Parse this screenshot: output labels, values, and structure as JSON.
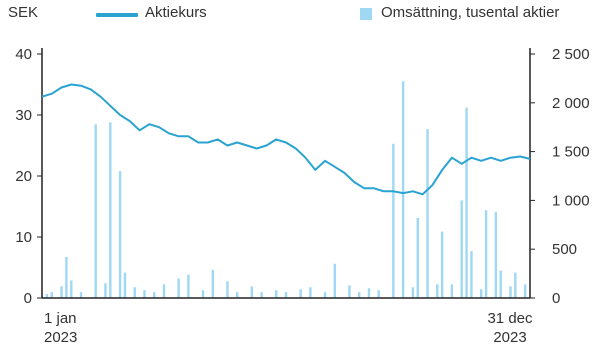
{
  "legend": {
    "left_unit": "SEK",
    "price_label": "Aktiekurs",
    "volume_label": "Omsättning, tusental aktier"
  },
  "colors": {
    "price_line": "#2aa3d1",
    "volume_bars": "#9fd8f2",
    "axis": "#222222"
  },
  "chart_data": {
    "type": "line",
    "left_axis": {
      "min": 0,
      "max": 40,
      "ticks": [
        "0",
        "10",
        "20",
        "30",
        "40"
      ],
      "tick_values": [
        0,
        10,
        20,
        30,
        40
      ]
    },
    "right_axis": {
      "min": 0,
      "max": 2500,
      "ticks": [
        "0",
        "500",
        "1 000",
        "1 500",
        "2 000",
        "2 500"
      ],
      "tick_values": [
        0,
        500,
        1000,
        1500,
        2000,
        2500
      ]
    },
    "x_labels": [
      {
        "line1": "1 jan",
        "line2": "2023"
      },
      {
        "line1": "31 dec",
        "line2": "2023"
      }
    ],
    "grid": false,
    "legend_position": "top",
    "series": [
      {
        "name": "Aktiekurs",
        "axis": "left",
        "x": [
          0.0,
          0.02,
          0.04,
          0.06,
          0.08,
          0.1,
          0.12,
          0.14,
          0.16,
          0.18,
          0.2,
          0.22,
          0.24,
          0.26,
          0.28,
          0.3,
          0.32,
          0.34,
          0.36,
          0.38,
          0.4,
          0.42,
          0.44,
          0.46,
          0.48,
          0.5,
          0.52,
          0.54,
          0.56,
          0.58,
          0.6,
          0.62,
          0.64,
          0.66,
          0.68,
          0.7,
          0.72,
          0.74,
          0.76,
          0.78,
          0.8,
          0.82,
          0.84,
          0.86,
          0.88,
          0.9,
          0.92,
          0.94,
          0.96,
          0.98,
          1.0
        ],
        "values": [
          33.0,
          33.5,
          34.5,
          35.0,
          34.8,
          34.2,
          33.0,
          31.5,
          30.0,
          29.0,
          27.5,
          28.5,
          28.0,
          27.0,
          26.5,
          26.5,
          25.5,
          25.5,
          26.0,
          25.0,
          25.5,
          25.0,
          24.5,
          25.0,
          26.0,
          25.5,
          24.5,
          23.0,
          21.0,
          22.5,
          21.5,
          20.5,
          19.0,
          18.0,
          18.0,
          17.5,
          17.5,
          17.2,
          17.5,
          17.0,
          18.5,
          21.0,
          23.0,
          22.0,
          23.0,
          22.5,
          23.0,
          22.5,
          23.0,
          23.2,
          22.8
        ]
      },
      {
        "name": "Omsättning, tusental aktier",
        "axis": "right",
        "type": "bar",
        "x": [
          0.01,
          0.02,
          0.04,
          0.05,
          0.06,
          0.08,
          0.11,
          0.13,
          0.14,
          0.16,
          0.17,
          0.19,
          0.21,
          0.23,
          0.25,
          0.28,
          0.3,
          0.33,
          0.35,
          0.38,
          0.4,
          0.43,
          0.45,
          0.48,
          0.5,
          0.53,
          0.55,
          0.58,
          0.6,
          0.63,
          0.65,
          0.67,
          0.69,
          0.72,
          0.74,
          0.76,
          0.77,
          0.79,
          0.81,
          0.82,
          0.84,
          0.86,
          0.87,
          0.88,
          0.9,
          0.91,
          0.93,
          0.94,
          0.96,
          0.97,
          0.99
        ],
        "values": [
          40,
          60,
          120,
          420,
          180,
          60,
          1780,
          150,
          1800,
          1300,
          260,
          110,
          80,
          60,
          140,
          200,
          240,
          80,
          290,
          170,
          60,
          120,
          60,
          80,
          60,
          90,
          110,
          60,
          350,
          130,
          60,
          100,
          80,
          1580,
          2220,
          110,
          820,
          1730,
          140,
          680,
          140,
          1000,
          1950,
          480,
          90,
          900,
          880,
          280,
          120,
          260,
          140
        ]
      }
    ]
  }
}
